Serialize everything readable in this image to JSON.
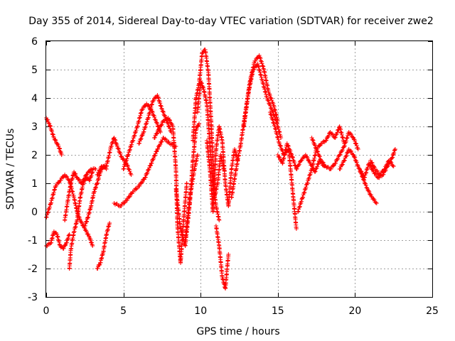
{
  "chart_data": {
    "type": "scatter",
    "title": "Day 355 of 2014, Sidereal Day-to-day VTEC variation (SDTVAR) for receiver zwe2",
    "xlabel": "GPS time / hours",
    "ylabel": "SDTVAR / TECUs",
    "xlim": [
      0,
      25
    ],
    "ylim": [
      -3,
      6
    ],
    "x_ticks": [
      0,
      5,
      10,
      15,
      20,
      25
    ],
    "y_ticks": [
      -3,
      -2,
      -1,
      0,
      1,
      2,
      3,
      4,
      5,
      6
    ],
    "x_tick_labels": [
      "0",
      "5",
      "10",
      "15",
      "20",
      "25"
    ],
    "y_tick_labels": [
      "-3",
      "-2",
      "-1",
      "0",
      "1",
      "2",
      "3",
      "4",
      "5",
      "6"
    ],
    "grid": true,
    "marker": "+",
    "color": "#ff0000",
    "series": [
      {
        "name": "s1",
        "x": [
          0.0,
          0.2,
          0.5,
          0.8,
          1.0
        ],
        "y": [
          3.3,
          3.1,
          2.6,
          2.3,
          2.0
        ]
      },
      {
        "name": "s2",
        "x": [
          0.0,
          0.3,
          0.6,
          0.9,
          1.2,
          1.5,
          1.8,
          2.0,
          2.2,
          2.5,
          2.8,
          3.0
        ],
        "y": [
          -0.2,
          0.3,
          0.9,
          1.1,
          1.3,
          1.1,
          0.5,
          0.0,
          -0.3,
          -0.6,
          -0.9,
          -1.2
        ]
      },
      {
        "name": "s3",
        "x": [
          0.0,
          0.3,
          0.5,
          0.7,
          0.9,
          1.1,
          1.3,
          1.5
        ],
        "y": [
          -1.2,
          -1.1,
          -0.7,
          -0.8,
          -1.2,
          -1.3,
          -1.1,
          -0.8
        ]
      },
      {
        "name": "s4",
        "x": [
          1.2,
          1.4,
          1.6,
          1.8,
          2.0,
          2.3,
          2.6,
          2.9,
          3.2
        ],
        "y": [
          -0.3,
          0.4,
          1.0,
          1.4,
          1.2,
          1.0,
          1.3,
          1.5,
          1.5
        ]
      },
      {
        "name": "s5",
        "x": [
          1.5,
          1.6,
          1.8,
          2.0,
          2.2,
          2.4,
          2.6,
          2.8,
          3.0
        ],
        "y": [
          -2.0,
          -1.3,
          -0.7,
          -0.3,
          0.5,
          1.0,
          1.2,
          1.1,
          1.4
        ]
      },
      {
        "name": "s6",
        "x": [
          2.5,
          2.7,
          2.9,
          3.1,
          3.3,
          3.5,
          3.7,
          3.9
        ],
        "y": [
          -0.5,
          -0.2,
          0.2,
          0.7,
          1.0,
          1.4,
          1.6,
          1.5
        ]
      },
      {
        "name": "s7",
        "x": [
          3.3,
          3.5,
          3.7,
          3.9,
          4.1
        ],
        "y": [
          -2.0,
          -1.8,
          -1.4,
          -0.8,
          -0.4
        ]
      },
      {
        "name": "s8",
        "x": [
          3.3,
          3.6,
          3.9,
          4.2,
          4.4,
          4.6,
          4.9,
          5.2,
          5.5
        ],
        "y": [
          1.3,
          1.6,
          1.6,
          2.3,
          2.6,
          2.3,
          1.9,
          1.7,
          1.3
        ]
      },
      {
        "name": "s9",
        "x": [
          4.4,
          4.8,
          5.2,
          5.6,
          6.0,
          6.4,
          6.8,
          7.2,
          7.6,
          8.0,
          8.4
        ],
        "y": [
          0.3,
          0.2,
          0.4,
          0.7,
          0.9,
          1.2,
          1.7,
          2.2,
          2.6,
          2.4,
          2.3
        ]
      },
      {
        "name": "s10",
        "x": [
          5.0,
          5.3,
          5.6,
          5.9,
          6.2,
          6.5,
          6.8,
          7.1,
          7.4
        ],
        "y": [
          1.5,
          2.0,
          2.5,
          3.0,
          3.6,
          3.8,
          3.6,
          3.2,
          2.8
        ]
      },
      {
        "name": "s11",
        "x": [
          6.0,
          6.3,
          6.6,
          6.9,
          7.2,
          7.5,
          7.8,
          8.1
        ],
        "y": [
          2.4,
          2.8,
          3.3,
          3.9,
          4.1,
          3.6,
          3.2,
          2.8
        ]
      },
      {
        "name": "s12",
        "x": [
          7.0,
          7.3,
          7.6,
          7.9,
          8.2,
          8.4,
          8.5,
          8.7,
          8.9,
          9.1
        ],
        "y": [
          2.6,
          2.9,
          3.2,
          3.3,
          3.0,
          1.5,
          -0.5,
          -1.8,
          -0.3,
          1.0
        ]
      },
      {
        "name": "s13",
        "x": [
          8.4,
          8.7,
          9.0,
          9.3,
          9.5,
          9.7,
          9.9
        ],
        "y": [
          0.8,
          -0.6,
          -1.2,
          0.3,
          1.8,
          2.9,
          3.1
        ]
      },
      {
        "name": "s14",
        "x": [
          9.0,
          9.3,
          9.6,
          9.8
        ],
        "y": [
          -1.0,
          0.5,
          1.5,
          2.0
        ]
      },
      {
        "name": "s15",
        "x": [
          9.5,
          9.7,
          9.9,
          10.1,
          10.3,
          10.5,
          10.7,
          10.9,
          11.1,
          11.3,
          11.5
        ],
        "y": [
          2.5,
          4.0,
          4.5,
          5.6,
          5.7,
          4.9,
          3.0,
          0.5,
          1.0,
          2.0,
          1.5
        ]
      },
      {
        "name": "s16",
        "x": [
          9.8,
          10.0,
          10.2,
          10.4,
          10.6,
          10.8,
          11.0,
          11.2
        ],
        "y": [
          3.5,
          4.6,
          4.3,
          3.8,
          2.4,
          1.0,
          0.2,
          -0.3
        ]
      },
      {
        "name": "s17",
        "x": [
          11.0,
          11.2,
          11.4,
          11.6,
          11.8
        ],
        "y": [
          -0.5,
          -1.2,
          -2.3,
          -2.7,
          -1.5
        ]
      },
      {
        "name": "s18",
        "x": [
          10.4,
          10.6,
          10.8,
          11.0,
          11.2,
          11.4,
          11.6,
          11.8,
          12.0,
          12.2,
          12.4
        ],
        "y": [
          2.5,
          1.5,
          0.0,
          2.2,
          3.0,
          2.5,
          1.0,
          0.2,
          1.5,
          2.2,
          1.8
        ]
      },
      {
        "name": "s19",
        "x": [
          12.0,
          12.3,
          12.6,
          12.9,
          13.2,
          13.5,
          13.8,
          14.1,
          14.4,
          14.7,
          15.0
        ],
        "y": [
          0.5,
          1.5,
          2.4,
          3.5,
          4.6,
          5.3,
          5.5,
          5.0,
          4.2,
          3.8,
          3.2
        ]
      },
      {
        "name": "s20",
        "x": [
          12.8,
          13.1,
          13.4,
          13.7,
          14.0,
          14.3,
          14.6,
          14.9,
          15.2
        ],
        "y": [
          3.0,
          4.2,
          5.0,
          5.2,
          4.6,
          4.0,
          3.6,
          3.2,
          2.6
        ]
      },
      {
        "name": "s21",
        "x": [
          14.5,
          14.8,
          15.1,
          15.4,
          15.7,
          16.0,
          16.2
        ],
        "y": [
          3.5,
          3.0,
          2.4,
          2.0,
          2.2,
          0.5,
          -0.6
        ]
      },
      {
        "name": "s22",
        "x": [
          15.0,
          15.3,
          15.6,
          15.9,
          16.2,
          16.5,
          16.8,
          17.1,
          17.4,
          17.7,
          18.0
        ],
        "y": [
          2.0,
          1.7,
          2.4,
          2.0,
          1.5,
          1.8,
          2.0,
          1.7,
          1.4,
          1.8,
          1.6
        ]
      },
      {
        "name": "s23",
        "x": [
          16.3,
          16.6,
          16.9,
          17.2,
          17.5,
          17.8,
          18.1,
          18.4,
          18.7,
          19.0,
          19.3
        ],
        "y": [
          0.0,
          0.5,
          1.0,
          1.5,
          2.2,
          2.4,
          2.5,
          2.8,
          2.6,
          3.0,
          2.4
        ]
      },
      {
        "name": "s24",
        "x": [
          17.2,
          17.5,
          17.8,
          18.1,
          18.4,
          18.7,
          19.0,
          19.3,
          19.6,
          19.9,
          20.2
        ],
        "y": [
          2.6,
          2.2,
          1.8,
          1.6,
          1.5,
          1.7,
          2.0,
          2.3,
          2.8,
          2.6,
          2.2
        ]
      },
      {
        "name": "s25",
        "x": [
          19.0,
          19.3,
          19.6,
          19.9,
          20.2,
          20.5,
          20.8,
          21.1,
          21.4
        ],
        "y": [
          1.5,
          1.8,
          2.2,
          2.0,
          1.6,
          1.2,
          0.8,
          0.5,
          0.3
        ]
      },
      {
        "name": "s26",
        "x": [
          20.3,
          20.6,
          20.9,
          21.2,
          21.5,
          21.8,
          22.1,
          22.4,
          22.6
        ],
        "y": [
          1.5,
          1.2,
          1.7,
          1.4,
          1.2,
          1.3,
          1.6,
          1.9,
          2.2
        ]
      },
      {
        "name": "s27",
        "x": [
          21.0,
          21.3,
          21.6,
          21.9,
          22.2,
          22.5
        ],
        "y": [
          1.8,
          1.5,
          1.3,
          1.5,
          1.8,
          1.6
        ]
      }
    ]
  }
}
